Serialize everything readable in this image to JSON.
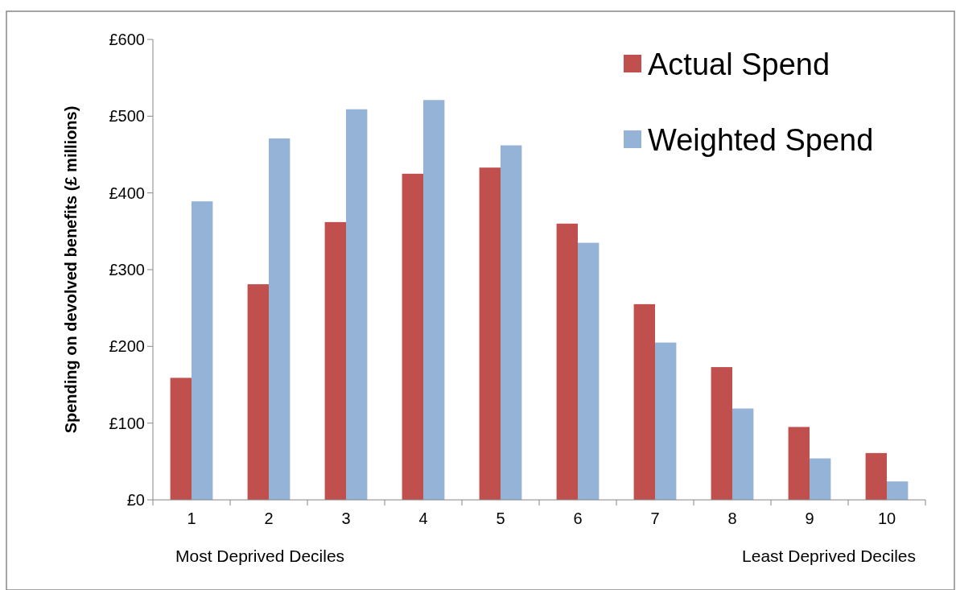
{
  "chart_data": {
    "type": "bar",
    "ylabel": "Spending on devolved benefits (£ millions)",
    "categories": [
      "1",
      "2",
      "3",
      "4",
      "5",
      "6",
      "7",
      "8",
      "9",
      "10"
    ],
    "series": [
      {
        "name": "Actual Spend",
        "color": "#c0504d",
        "values": [
          159,
          281,
          362,
          425,
          433,
          360,
          255,
          173,
          95,
          61
        ]
      },
      {
        "name": "Weighted Spend",
        "color": "#95b3d7",
        "values": [
          389,
          471,
          509,
          521,
          462,
          335,
          205,
          119,
          54,
          24
        ]
      }
    ],
    "ylim": [
      0,
      600
    ],
    "yticks": [
      {
        "value": 0,
        "label": "£0"
      },
      {
        "value": 100,
        "label": "£100"
      },
      {
        "value": 200,
        "label": "£200"
      },
      {
        "value": 300,
        "label": "£300"
      },
      {
        "value": 400,
        "label": "£400"
      },
      {
        "value": 500,
        "label": "£500"
      },
      {
        "value": 600,
        "label": "£600"
      }
    ],
    "grid": false,
    "legend": "top right",
    "annotations": [
      "Most Deprived Deciles",
      "Least Deprived Deciles"
    ]
  }
}
